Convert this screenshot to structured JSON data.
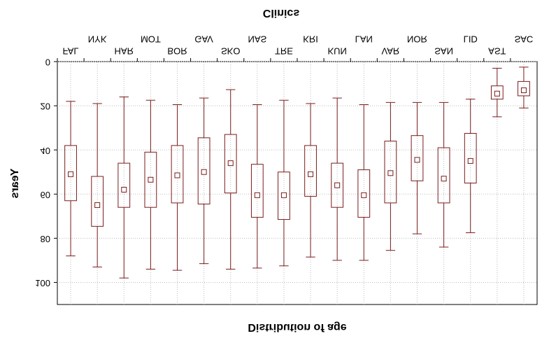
{
  "chart_data": {
    "type": "box",
    "title": "Distribution of age",
    "xlabel": "Clinics",
    "ylabel": "Years",
    "categories": [
      "FAL",
      "NYK",
      "HAR",
      "MOT",
      "BOR",
      "GAV",
      "SKO",
      "NAS",
      "TRE",
      "KRI",
      "KUN",
      "LAN",
      "VAR",
      "NOR",
      "SAN",
      "LID",
      "AST",
      "SAC"
    ],
    "min": [
      18,
      19,
      16,
      17.5,
      19.5,
      16.5,
      12.7,
      19.5,
      17.5,
      19,
      16.5,
      19.5,
      18.5,
      18.5,
      18.5,
      17,
      3,
      2.5
    ],
    "q1": [
      38,
      52,
      46,
      41,
      38,
      34.5,
      33,
      46.5,
      50,
      38,
      46,
      49,
      36,
      33.5,
      39,
      32.5,
      11,
      9
    ],
    "median": [
      51,
      65,
      58,
      53.5,
      51.5,
      50,
      46,
      60.5,
      60.5,
      51,
      56,
      60.5,
      50.5,
      44.5,
      53,
      45,
      14.5,
      13
    ],
    "q3": [
      63,
      74.6,
      66,
      66,
      64,
      64.5,
      59.5,
      70.5,
      71.5,
      61,
      66,
      70.5,
      64,
      54,
      64,
      55,
      17,
      15.5
    ],
    "max": [
      88,
      93,
      98,
      94,
      94.5,
      91.5,
      94,
      93.5,
      92.5,
      88.5,
      90,
      90,
      85.5,
      78,
      84,
      77.5,
      25,
      21
    ],
    "color": "#7a1c1c",
    "ylim": [
      0,
      110
    ],
    "yticks": [
      0,
      20,
      40,
      60,
      80,
      100
    ],
    "grid": true
  }
}
